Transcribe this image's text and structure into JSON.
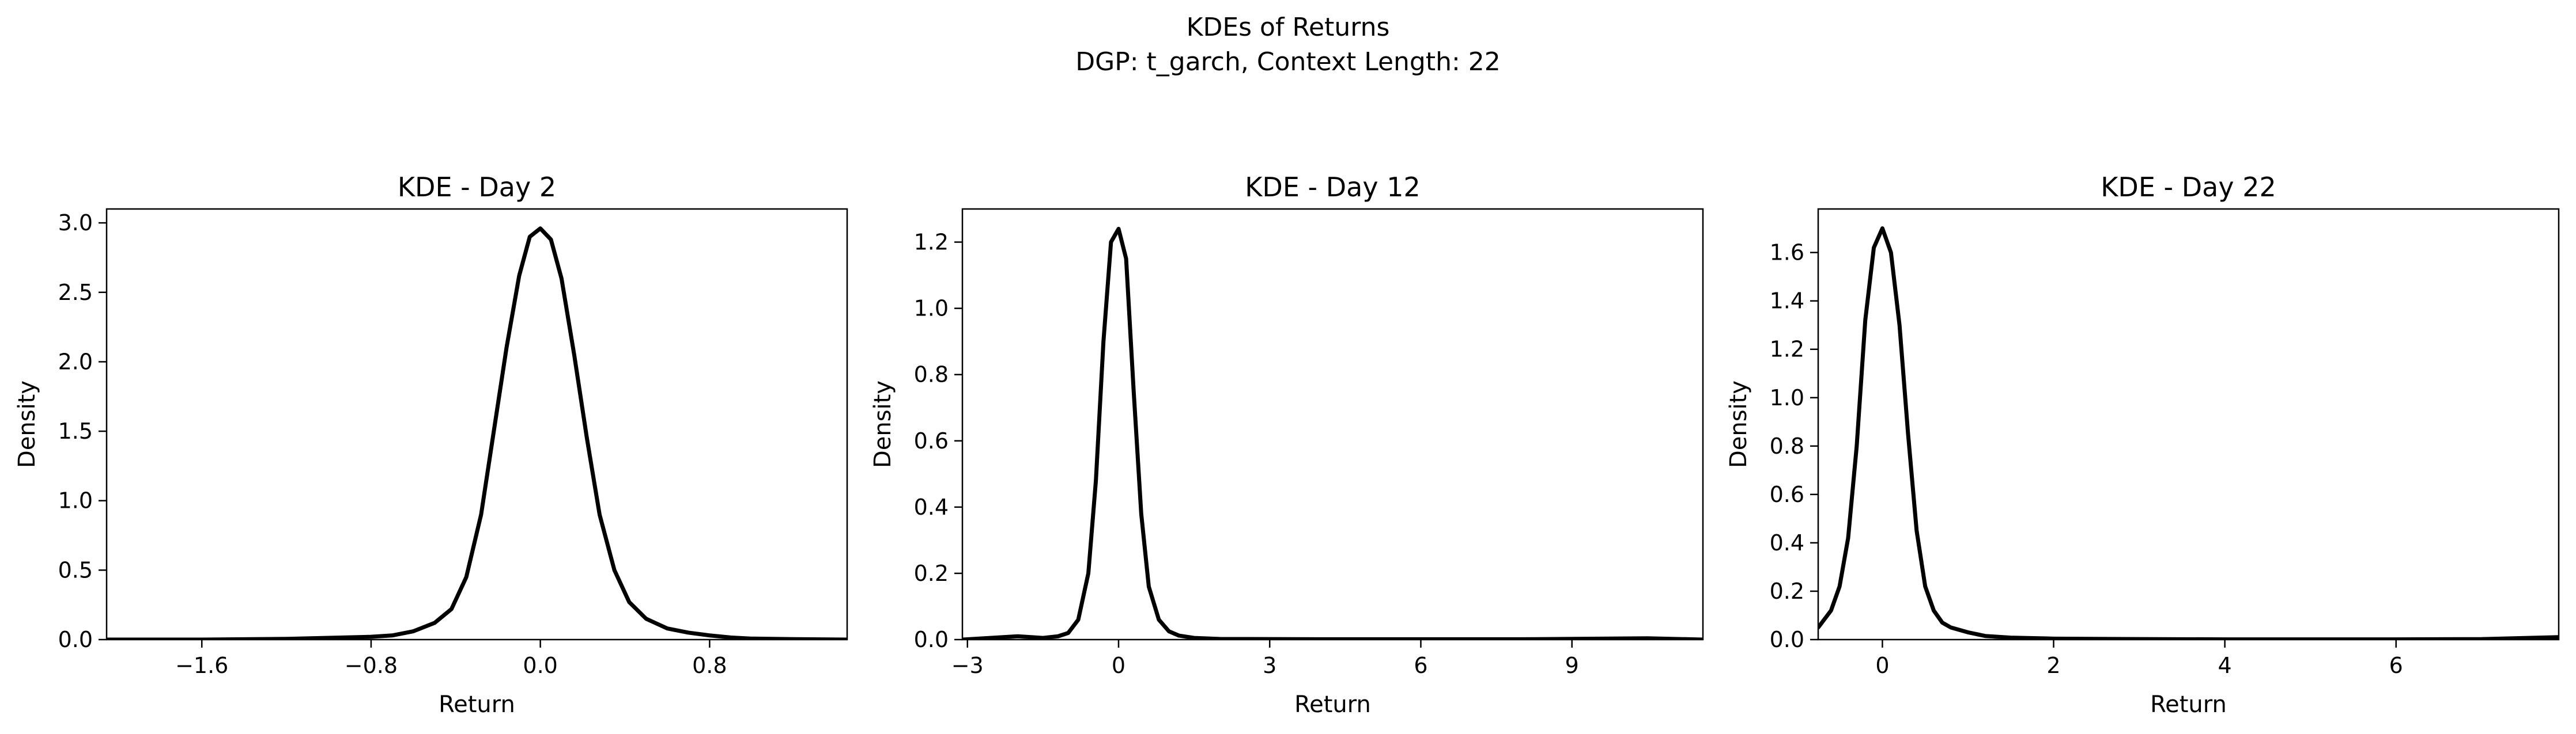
{
  "figure": {
    "title": "KDEs of Returns",
    "subtitle": "DGP: t_garch, Context Length: 22"
  },
  "chart_data": [
    {
      "type": "line",
      "title": "KDE - Day 2",
      "xlabel": "Return",
      "ylabel": "Density",
      "xlim": [
        -2.05,
        1.45
      ],
      "ylim": [
        0,
        3.1
      ],
      "xticks": [
        -1.6,
        -0.8,
        0.0,
        0.8
      ],
      "xtick_labels": [
        "−1.6",
        "−0.8",
        "0.0",
        "0.8"
      ],
      "yticks": [
        0.0,
        0.5,
        1.0,
        1.5,
        2.0,
        2.5,
        3.0
      ],
      "ytick_labels": [
        "0.0",
        "0.5",
        "1.0",
        "1.5",
        "2.0",
        "2.5",
        "3.0"
      ],
      "grid": false,
      "series": [
        {
          "color": "#000000",
          "x": [
            -2.05,
            -1.6,
            -1.2,
            -0.8,
            -0.7,
            -0.6,
            -0.5,
            -0.42,
            -0.35,
            -0.28,
            -0.22,
            -0.16,
            -0.1,
            -0.05,
            0.0,
            0.05,
            0.1,
            0.16,
            0.22,
            0.28,
            0.35,
            0.42,
            0.5,
            0.6,
            0.7,
            0.8,
            0.9,
            1.0,
            1.2,
            1.45
          ],
          "y": [
            0.0,
            0.0,
            0.005,
            0.02,
            0.03,
            0.06,
            0.12,
            0.22,
            0.45,
            0.9,
            1.5,
            2.1,
            2.62,
            2.9,
            2.96,
            2.88,
            2.6,
            2.05,
            1.45,
            0.9,
            0.5,
            0.27,
            0.15,
            0.08,
            0.05,
            0.03,
            0.015,
            0.007,
            0.003,
            0.0
          ]
        }
      ]
    },
    {
      "type": "line",
      "title": "KDE - Day 12",
      "xlabel": "Return",
      "ylabel": "Density",
      "xlim": [
        -3.1,
        11.6
      ],
      "ylim": [
        0,
        1.3
      ],
      "xticks": [
        -3,
        0,
        3,
        6,
        9
      ],
      "xtick_labels": [
        "−3",
        "0",
        "3",
        "6",
        "9"
      ],
      "yticks": [
        0.0,
        0.2,
        0.4,
        0.6,
        0.8,
        1.0,
        1.2
      ],
      "ytick_labels": [
        "0.0",
        "0.2",
        "0.4",
        "0.6",
        "0.8",
        "1.0",
        "1.2"
      ],
      "grid": false,
      "series": [
        {
          "color": "#000000",
          "x": [
            -3.1,
            -2.0,
            -1.5,
            -1.2,
            -1.0,
            -0.8,
            -0.6,
            -0.45,
            -0.3,
            -0.15,
            0.0,
            0.15,
            0.3,
            0.45,
            0.6,
            0.8,
            1.0,
            1.2,
            1.5,
            2.0,
            4.0,
            6.0,
            8.0,
            10.5,
            11.6
          ],
          "y": [
            0.0,
            0.01,
            0.005,
            0.01,
            0.02,
            0.06,
            0.2,
            0.48,
            0.9,
            1.2,
            1.24,
            1.15,
            0.75,
            0.38,
            0.16,
            0.06,
            0.025,
            0.012,
            0.005,
            0.002,
            0.001,
            0.001,
            0.001,
            0.004,
            0.0
          ]
        }
      ]
    },
    {
      "type": "line",
      "title": "KDE - Day 22",
      "xlabel": "Return",
      "ylabel": "Density",
      "xlim": [
        -0.75,
        7.9
      ],
      "ylim": [
        0,
        1.78
      ],
      "xticks": [
        0,
        2,
        4,
        6
      ],
      "xtick_labels": [
        "0",
        "2",
        "4",
        "6"
      ],
      "yticks": [
        0.0,
        0.2,
        0.4,
        0.6,
        0.8,
        1.0,
        1.2,
        1.4,
        1.6
      ],
      "ytick_labels": [
        "0.0",
        "0.2",
        "0.4",
        "0.6",
        "0.8",
        "1.0",
        "1.2",
        "1.4",
        "1.6"
      ],
      "grid": false,
      "series": [
        {
          "color": "#000000",
          "x": [
            -0.75,
            -0.6,
            -0.5,
            -0.4,
            -0.3,
            -0.2,
            -0.1,
            0.0,
            0.1,
            0.2,
            0.3,
            0.4,
            0.5,
            0.6,
            0.7,
            0.8,
            1.0,
            1.2,
            1.5,
            2.0,
            3.0,
            4.0,
            5.0,
            6.0,
            7.0,
            7.9
          ],
          "y": [
            0.05,
            0.12,
            0.22,
            0.42,
            0.8,
            1.32,
            1.62,
            1.7,
            1.6,
            1.3,
            0.85,
            0.45,
            0.22,
            0.12,
            0.07,
            0.05,
            0.03,
            0.015,
            0.008,
            0.004,
            0.002,
            0.001,
            0.001,
            0.001,
            0.002,
            0.01
          ]
        }
      ]
    }
  ]
}
